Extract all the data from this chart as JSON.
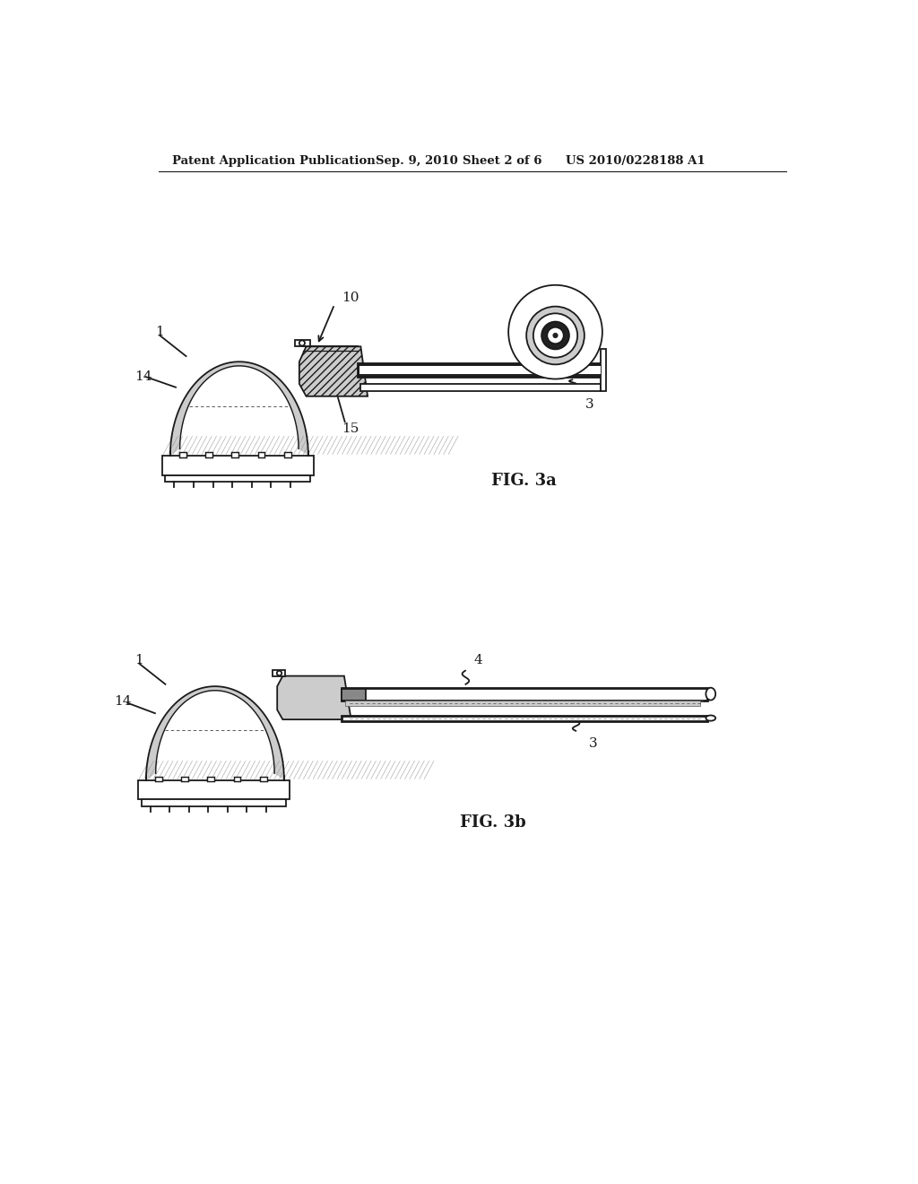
{
  "background_color": "#ffffff",
  "header_text": "Patent Application Publication",
  "header_date": "Sep. 9, 2010",
  "header_sheet": "Sheet 2 of 6",
  "header_patent": "US 2010/0228188 A1",
  "fig3a_label": "FIG. 3a",
  "fig3b_label": "FIG. 3b",
  "line_color": "#1a1a1a",
  "dark_fill": "#222222",
  "mid_gray": "#888888",
  "light_gray": "#cccccc",
  "hatch_gray": "#aaaaaa"
}
